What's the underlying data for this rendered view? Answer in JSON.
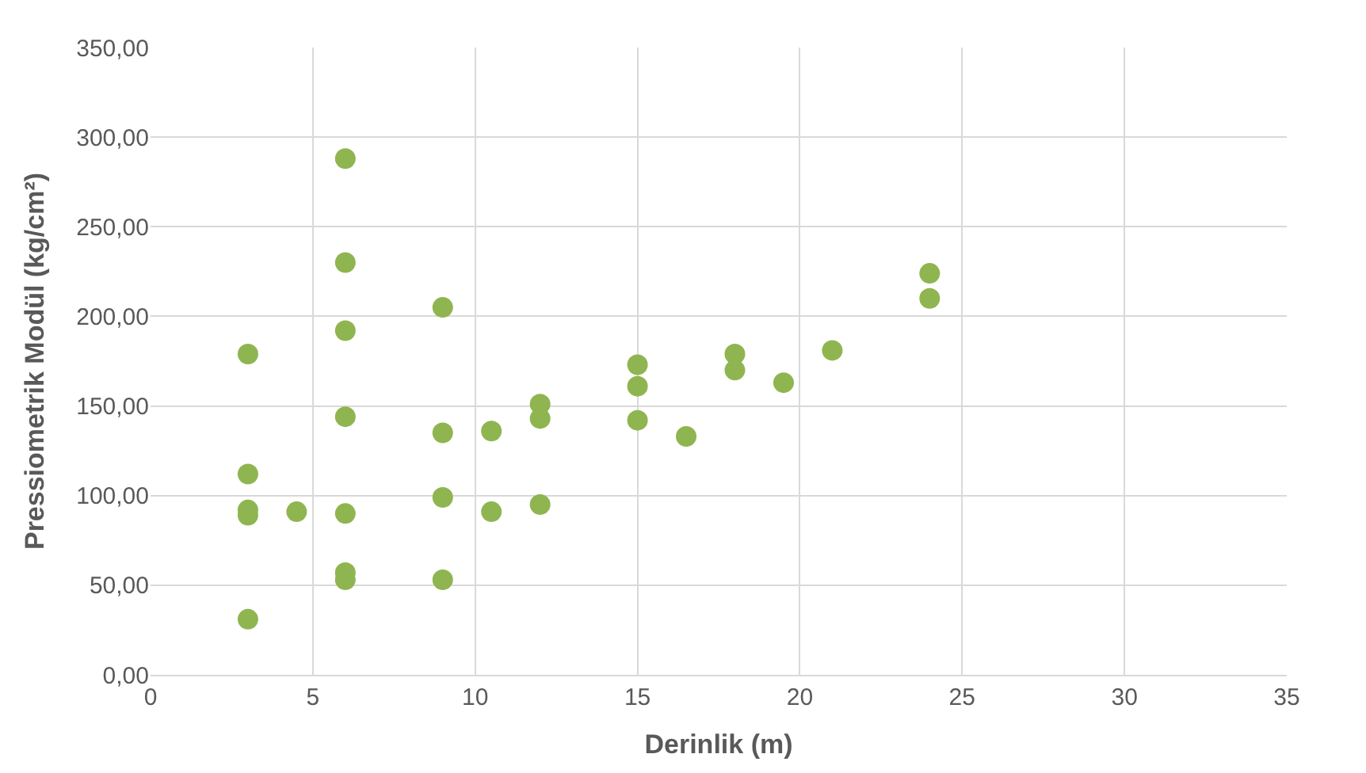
{
  "chart_data": {
    "type": "scatter",
    "xlabel": "Derinlik (m)",
    "ylabel": "Pressiometrik Modül (kg/cm²)",
    "series": [
      {
        "color": "#8fb550",
        "x": [
          3,
          3,
          3,
          3,
          3,
          4.5,
          6,
          6,
          6,
          6,
          6,
          6,
          6,
          9,
          9,
          9,
          9,
          10.5,
          10.5,
          12,
          12,
          12,
          15,
          15,
          15,
          16.5,
          18,
          18,
          19.5,
          21,
          24,
          24
        ],
        "values": [
          179,
          112,
          92,
          89,
          31,
          91,
          288,
          230,
          192,
          144,
          90,
          57,
          53,
          205,
          135,
          99,
          53,
          136,
          91,
          151,
          143,
          95,
          173,
          161,
          142,
          133,
          179,
          170,
          163,
          181,
          224,
          210
        ]
      }
    ],
    "xlim": [
      0,
      35
    ],
    "xticks": [
      0,
      5,
      10,
      15,
      20,
      25,
      30,
      35
    ],
    "ylim": [
      0,
      350
    ],
    "yticks": [
      {
        "value": 0,
        "label": "0,00"
      },
      {
        "value": 50,
        "label": "50,00"
      },
      {
        "value": 100,
        "label": "100,00"
      },
      {
        "value": 150,
        "label": "150,00"
      },
      {
        "value": 200,
        "label": "200,00"
      },
      {
        "value": 250,
        "label": "250,00"
      },
      {
        "value": 300,
        "label": "300,00"
      },
      {
        "value": 350,
        "label": "350,00"
      }
    ],
    "grid": true,
    "marker": "circle"
  }
}
